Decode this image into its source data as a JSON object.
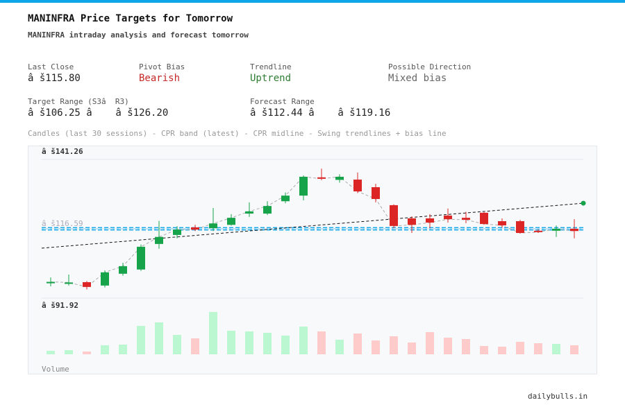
{
  "header": {
    "title": "MANINFRA Price Targets for Tomorrow",
    "subtitle": "MANINFRA intraday analysis and forecast tomorrow"
  },
  "stats": [
    {
      "label": "Last Close",
      "value": "â š115.80",
      "color": "#222222"
    },
    {
      "label": "Pivot Bias",
      "value": "Bearish",
      "color": "#c62828"
    },
    {
      "label": "Trendline",
      "value": "Uptrend",
      "color": "#2e7d32"
    },
    {
      "label": "Possible Direction",
      "value": "Mixed bias",
      "color": "#666666"
    },
    {
      "label": "Target Range (S3â  R3)",
      "value": "â š106.25 â    â š126.20",
      "color": "#222222"
    },
    {
      "label": "Forecast Range",
      "value": "â š112.44 â    â š119.16",
      "color": "#222222"
    }
  ],
  "caption": "Candles (last 30 sessions) - CPR band (latest) - CPR midline - Swing trendlines + bias line",
  "chart_data": {
    "type": "candlestick",
    "ylim": [
      91.92,
      141.26
    ],
    "yticks": [
      {
        "value": 141.26,
        "label": "â š141.26"
      },
      {
        "value": 116.59,
        "label": "â š116.59"
      },
      {
        "value": 91.92,
        "label": "â š91.92"
      }
    ],
    "open": [
      97.5,
      97.0,
      97.6,
      96.4,
      100.6,
      102.1,
      111.2,
      114.4,
      117.1,
      116.8,
      118.0,
      122.0,
      122.0,
      126.4,
      128.4,
      134.9,
      134.0,
      134.1,
      131.4,
      125.0,
      120.3,
      120.3,
      121.3,
      120.5,
      122.3,
      119.3,
      119.3,
      115.9,
      115.9,
      116.6
    ],
    "high": [
      99.3,
      100.3,
      98.0,
      101.8,
      104.5,
      111.0,
      119.4,
      117.5,
      118.0,
      124.0,
      121.8,
      126.0,
      126.4,
      129.5,
      135.6,
      138.0,
      136.0,
      136.6,
      132.6,
      125.3,
      121.0,
      121.8,
      123.8,
      122.6,
      122.5,
      120.3,
      119.8,
      116.4,
      117.8,
      120.0
    ],
    "low": [
      96.1,
      96.4,
      95.0,
      95.7,
      99.9,
      101.6,
      109.5,
      113.2,
      115.8,
      115.8,
      117.7,
      120.8,
      121.5,
      125.7,
      126.7,
      133.9,
      133.0,
      129.3,
      126.0,
      116.8,
      115.1,
      116.8,
      118.8,
      118.6,
      118.0,
      117.0,
      114.9,
      115.1,
      113.7,
      113.2
    ],
    "close": [
      97.7,
      97.5,
      95.9,
      101.1,
      103.3,
      110.2,
      113.7,
      116.3,
      116.3,
      118.5,
      120.5,
      122.8,
      124.7,
      128.4,
      135.1,
      134.4,
      135.1,
      129.9,
      127.2,
      117.6,
      118.0,
      118.8,
      120.0,
      119.8,
      118.3,
      117.8,
      115.1,
      115.4,
      116.6,
      115.8
    ],
    "volume": [
      5,
      6,
      4,
      13,
      14,
      41,
      46,
      28,
      23,
      61,
      34,
      33,
      31,
      27,
      40,
      33,
      21,
      30,
      20,
      26,
      17,
      32,
      24,
      22,
      12,
      11,
      18,
      16,
      15,
      13
    ],
    "volume_lim": [
      0,
      65
    ],
    "volume_label": "Volume",
    "up_color": "#16a34a",
    "down_color": "#dc2626",
    "up_volume_color": "#bbf7d0",
    "down_volume_color": "#fecaca",
    "cpr": {
      "top": 117.0,
      "bottom": 116.2,
      "mid": 116.6,
      "color": "#0ea5e9"
    },
    "trendline": {
      "start": 109.7,
      "end": 125.7,
      "color": "#111111"
    }
  },
  "footer": "dailybulls.in"
}
